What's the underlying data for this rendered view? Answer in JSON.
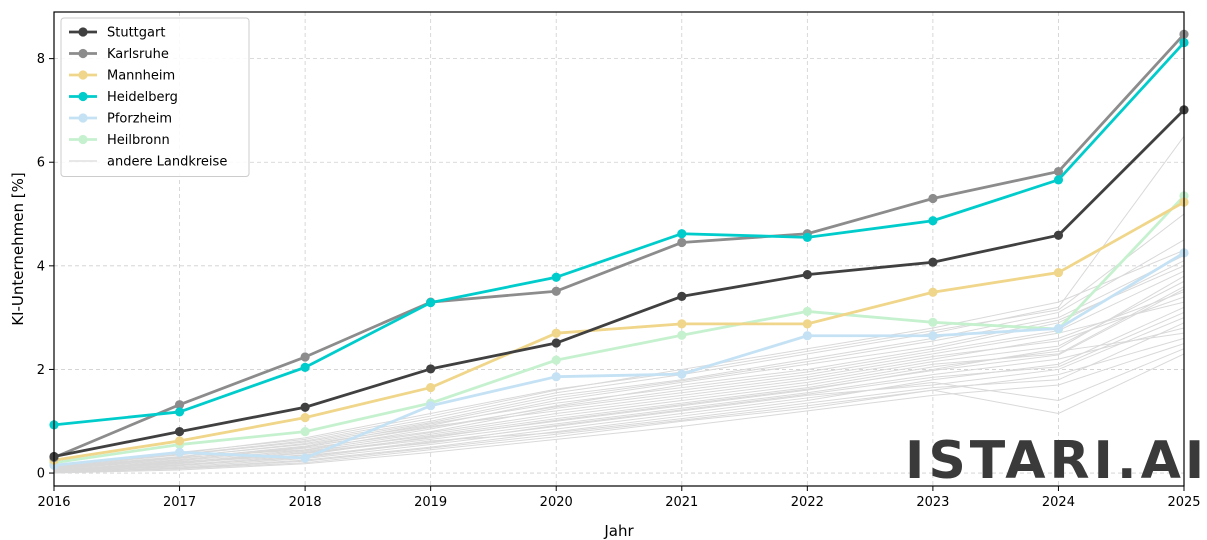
{
  "chart_data": {
    "type": "line",
    "xlabel": "Jahr",
    "ylabel": "KI-Unternehmen [%]",
    "x": [
      2016,
      2017,
      2018,
      2019,
      2020,
      2021,
      2022,
      2023,
      2024,
      2025
    ],
    "xlim": [
      2016,
      2025
    ],
    "ylim": [
      -0.25,
      8.9
    ],
    "yticks": [
      0,
      2,
      4,
      6,
      8
    ],
    "grid": true,
    "legend_position": "top-left",
    "series": [
      {
        "name": "Stuttgart",
        "color": "#404040",
        "values": [
          0.32,
          0.8,
          1.27,
          2.01,
          2.51,
          3.41,
          3.83,
          4.07,
          4.59,
          7.01
        ]
      },
      {
        "name": "Karlsruhe",
        "color": "#8c8c8c",
        "values": [
          0.3,
          1.32,
          2.24,
          3.3,
          3.51,
          4.45,
          4.62,
          5.3,
          5.82,
          8.47
        ]
      },
      {
        "name": "Mannheim",
        "color": "#f0d68a",
        "values": [
          0.25,
          0.62,
          1.07,
          1.65,
          2.7,
          2.88,
          2.88,
          3.49,
          3.87,
          5.23
        ]
      },
      {
        "name": "Heidelberg",
        "color": "#00cccc",
        "values": [
          0.93,
          1.18,
          2.04,
          3.29,
          3.78,
          4.62,
          4.55,
          4.87,
          5.66,
          8.31
        ]
      },
      {
        "name": "Pforzheim",
        "color": "#c5e2f5",
        "values": [
          0.15,
          0.4,
          0.29,
          1.3,
          1.86,
          1.91,
          2.65,
          2.65,
          2.79,
          4.25
        ]
      },
      {
        "name": "Heilbronn",
        "color": "#c6f1cf",
        "values": [
          0.2,
          0.55,
          0.8,
          1.35,
          2.18,
          2.66,
          3.12,
          2.91,
          2.78,
          5.35
        ]
      }
    ],
    "other_series_label": "andere Landkreise",
    "other_series_color": "#d9d9d9",
    "other_series": [
      [
        0.05,
        0.2,
        0.35,
        0.7,
        1.0,
        1.3,
        1.6,
        2.0,
        2.4,
        3.8
      ],
      [
        0.1,
        0.25,
        0.5,
        0.9,
        1.2,
        1.5,
        1.8,
        2.2,
        2.6,
        3.5
      ],
      [
        0.02,
        0.1,
        0.25,
        0.5,
        0.8,
        1.1,
        1.4,
        1.8,
        2.1,
        3.2
      ],
      [
        0.08,
        0.3,
        0.45,
        0.85,
        1.3,
        1.7,
        2.0,
        2.4,
        2.9,
        4.1
      ],
      [
        0.0,
        0.15,
        0.3,
        0.6,
        0.9,
        1.2,
        1.5,
        1.7,
        2.0,
        3.0
      ],
      [
        0.12,
        0.35,
        0.6,
        1.0,
        1.5,
        1.8,
        2.2,
        2.6,
        3.1,
        4.5
      ],
      [
        0.04,
        0.18,
        0.4,
        0.75,
        1.1,
        1.4,
        1.7,
        2.1,
        2.3,
        3.6
      ],
      [
        0.06,
        0.22,
        0.38,
        0.65,
        0.95,
        1.25,
        1.55,
        1.9,
        2.2,
        2.8
      ],
      [
        0.15,
        0.4,
        0.65,
        1.1,
        1.6,
        2.0,
        2.4,
        2.8,
        3.3,
        4.3
      ],
      [
        0.01,
        0.08,
        0.2,
        0.45,
        0.7,
        1.0,
        1.25,
        1.6,
        1.9,
        2.6
      ],
      [
        0.09,
        0.28,
        0.52,
        0.95,
        1.35,
        1.65,
        1.95,
        2.35,
        2.75,
        3.9
      ],
      [
        0.03,
        0.12,
        0.28,
        0.55,
        0.85,
        1.15,
        1.45,
        1.75,
        1.4,
        2.4
      ],
      [
        0.07,
        0.26,
        0.48,
        0.8,
        1.25,
        1.55,
        1.85,
        2.25,
        2.55,
        3.4
      ],
      [
        0.11,
        0.32,
        0.55,
        0.92,
        1.4,
        1.75,
        2.1,
        2.45,
        2.95,
        4.0
      ],
      [
        0.02,
        0.14,
        0.32,
        0.62,
        0.78,
        1.05,
        1.35,
        1.65,
        1.8,
        2.9
      ],
      [
        0.05,
        0.24,
        0.44,
        0.78,
        1.15,
        1.45,
        1.75,
        2.15,
        2.45,
        3.7
      ],
      [
        0.14,
        0.36,
        0.62,
        1.05,
        1.55,
        1.9,
        2.3,
        2.7,
        3.2,
        6.5
      ],
      [
        0.0,
        0.06,
        0.18,
        0.4,
        0.65,
        0.9,
        1.2,
        1.5,
        1.7,
        2.5
      ],
      [
        0.08,
        0.29,
        0.5,
        0.88,
        1.28,
        1.6,
        1.9,
        2.3,
        2.7,
        3.3
      ],
      [
        0.03,
        0.16,
        0.34,
        0.58,
        0.92,
        1.22,
        1.52,
        1.85,
        2.05,
        3.1
      ],
      [
        0.1,
        0.31,
        0.57,
        0.97,
        1.45,
        1.78,
        2.15,
        2.55,
        3.0,
        4.2
      ],
      [
        0.06,
        0.21,
        0.42,
        0.72,
        1.05,
        1.35,
        1.65,
        2.05,
        2.35,
        2.7
      ],
      [
        0.13,
        0.38,
        0.68,
        1.15,
        1.62,
        1.95,
        2.35,
        2.75,
        3.15,
        5.0
      ],
      [
        0.01,
        0.09,
        0.23,
        0.48,
        0.75,
        1.02,
        1.3,
        1.6,
        1.15,
        2.3
      ],
      [
        0.04,
        0.19,
        0.39,
        0.68,
        1.02,
        1.32,
        1.62,
        1.98,
        2.28,
        3.55
      ]
    ]
  },
  "logo": {
    "text": "ISTARI.AI"
  }
}
